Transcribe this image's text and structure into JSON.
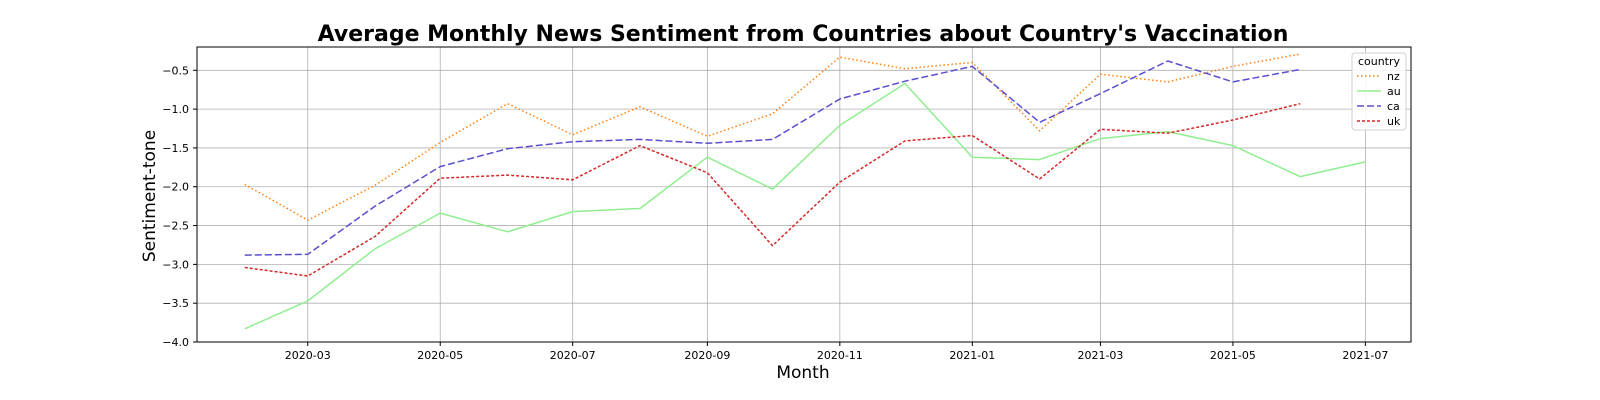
{
  "chart_data": {
    "type": "line",
    "title": "Average Monthly News Sentiment from Countries about Country's Vaccination",
    "xlabel": "Month",
    "ylabel": "Sentiment-tone",
    "x": [
      "2020-02",
      "2020-03",
      "2020-04",
      "2020-05",
      "2020-06",
      "2020-07",
      "2020-08",
      "2020-09",
      "2020-10",
      "2020-11",
      "2020-12",
      "2021-01",
      "2021-02",
      "2021-03",
      "2021-04",
      "2021-05",
      "2021-06",
      "2021-07"
    ],
    "x_ticks": [
      "2020-03",
      "2020-05",
      "2020-07",
      "2020-09",
      "2020-11",
      "2021-01",
      "2021-03",
      "2021-05",
      "2021-07"
    ],
    "y_ticks": [
      -4.0,
      -3.5,
      -3.0,
      -2.5,
      -2.0,
      -1.5,
      -1.0,
      -0.5
    ],
    "xlim": [
      "2020-01-10",
      "2021-07-22"
    ],
    "ylim": [
      -4.0,
      -0.2
    ],
    "grid": true,
    "legend": {
      "title": "country",
      "placement": "top-right"
    },
    "series": [
      {
        "name": "nz",
        "color": "#ff7f0e",
        "style": "dotted",
        "values": [
          -1.97,
          -2.43,
          -1.98,
          -1.43,
          -0.93,
          -1.33,
          -0.97,
          -1.35,
          -1.06,
          -0.33,
          -0.48,
          -0.4,
          -1.28,
          -0.55,
          -0.65,
          -0.45,
          -0.29,
          null
        ]
      },
      {
        "name": "au",
        "color": "#90ee90",
        "style": "solid",
        "values": [
          -3.83,
          -3.47,
          -2.8,
          -2.34,
          -2.58,
          -2.32,
          -2.28,
          -1.62,
          -2.03,
          -1.21,
          -0.67,
          -1.62,
          -1.65,
          -1.38,
          -1.29,
          -1.47,
          -1.87,
          -1.68
        ]
      },
      {
        "name": "ca",
        "color": "#5a4fcf",
        "style": "dashed",
        "values": [
          -2.88,
          -2.87,
          -2.25,
          -1.74,
          -1.51,
          -1.42,
          -1.39,
          -1.44,
          -1.39,
          -0.87,
          -0.64,
          -0.45,
          -1.17,
          -0.8,
          -0.38,
          -0.65,
          -0.49,
          null
        ]
      },
      {
        "name": "uk",
        "color": "#d62728",
        "style": "dashdot",
        "values": [
          -3.04,
          -3.15,
          -2.64,
          -1.89,
          -1.85,
          -1.91,
          -1.47,
          -1.82,
          -2.76,
          -1.94,
          -1.41,
          -1.34,
          -1.9,
          -1.26,
          -1.31,
          -1.14,
          -0.93,
          null
        ]
      }
    ]
  }
}
